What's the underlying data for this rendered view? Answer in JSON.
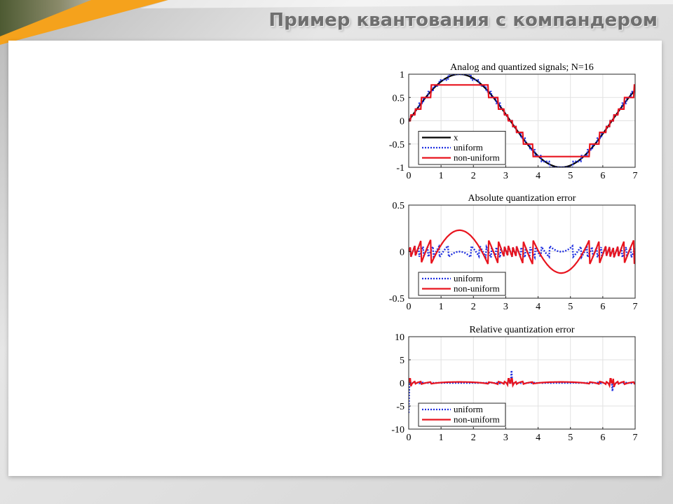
{
  "slide": {
    "title": "Пример квантования с компандером",
    "accent_color": "#f5a21c",
    "banner_color": "#5a6a3a"
  },
  "chart_data": [
    {
      "type": "line",
      "title": "Analog and quantized signals; N=16",
      "xlabel": "",
      "ylabel": "",
      "xlim": [
        0,
        7
      ],
      "ylim": [
        -1,
        1
      ],
      "xticks": [
        0,
        1,
        2,
        3,
        4,
        5,
        6,
        7
      ],
      "yticks": [
        -1,
        -0.5,
        0,
        0.5,
        1
      ],
      "ytick_labels": [
        "-1",
        "-0.5",
        "0",
        "0.5",
        "1"
      ],
      "grid": true,
      "legend": "bottom-left",
      "series": [
        {
          "name": "x",
          "color": "#000000",
          "style": "solid",
          "kind": "sine"
        },
        {
          "name": "uniform",
          "color": "#1f2fe0",
          "style": "dotted",
          "kind": "uniform-quant",
          "levels": 16
        },
        {
          "name": "non-uniform",
          "color": "#e8141e",
          "style": "solid",
          "kind": "nonuniform-quant",
          "levels": [
            0,
            0.125,
            0.25,
            0.5,
            0.77
          ]
        }
      ]
    },
    {
      "type": "line",
      "title": "Absolute quantization error",
      "xlabel": "",
      "ylabel": "",
      "xlim": [
        0,
        7
      ],
      "ylim": [
        -0.5,
        0.5
      ],
      "xticks": [
        0,
        1,
        2,
        3,
        4,
        5,
        6,
        7
      ],
      "yticks": [
        -0.5,
        0,
        0.5
      ],
      "ytick_labels": [
        "-0.5",
        "0",
        "0.5"
      ],
      "grid": true,
      "legend": "bottom-left",
      "series": [
        {
          "name": "uniform",
          "color": "#1f2fe0",
          "style": "dotted",
          "kind": "uniform-abs"
        },
        {
          "name": "non-uniform",
          "color": "#e8141e",
          "style": "solid",
          "kind": "nonuniform-abs"
        }
      ]
    },
    {
      "type": "line",
      "title": "Relative quantization error",
      "xlabel": "",
      "ylabel": "",
      "xlim": [
        0,
        7
      ],
      "ylim": [
        -10,
        10
      ],
      "xticks": [
        0,
        1,
        2,
        3,
        4,
        5,
        6,
        7
      ],
      "yticks": [
        -10,
        -5,
        0,
        5,
        10
      ],
      "ytick_labels": [
        "-10",
        "-5",
        "0",
        "5",
        "10"
      ],
      "grid": true,
      "legend": "bottom-left",
      "series": [
        {
          "name": "uniform",
          "color": "#1f2fe0",
          "style": "dotted",
          "kind": "uniform-rel",
          "spikes": [
            {
              "x": 0.0,
              "y": -6.5
            },
            {
              "x": 3.18,
              "y": 2.7
            },
            {
              "x": 6.3,
              "y": -1.8
            }
          ]
        },
        {
          "name": "non-uniform",
          "color": "#e8141e",
          "style": "solid",
          "kind": "nonuniform-rel"
        }
      ]
    }
  ]
}
